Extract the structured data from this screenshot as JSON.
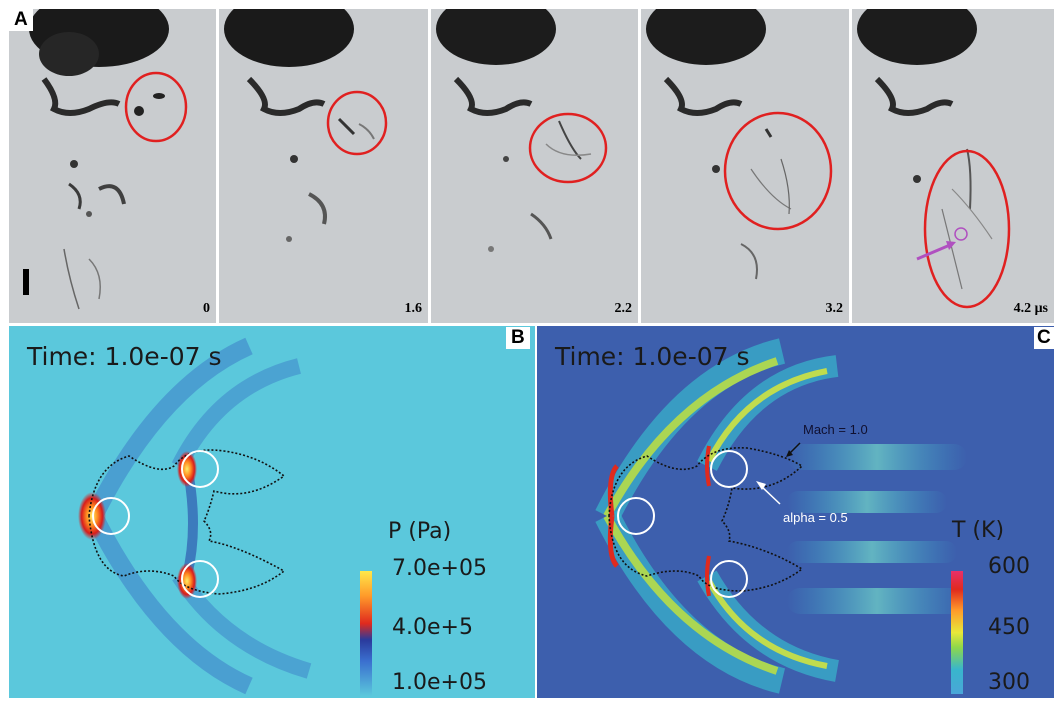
{
  "figure": {
    "panels": {
      "a": "A",
      "b": "B",
      "c": "C"
    },
    "frames": [
      {
        "time_label": "0"
      },
      {
        "time_label": "1.6"
      },
      {
        "time_label": "2.2"
      },
      {
        "time_label": "3.2"
      },
      {
        "time_label": "4.2 μs"
      }
    ]
  },
  "panel_b": {
    "time_title": "Time: 1.0e-07 s",
    "quantity": "P (Pa)",
    "colorbar_ticks": [
      "7.0e+05",
      "4.0e+5",
      "1.0e+05"
    ],
    "background_color": "#5bc8dc"
  },
  "panel_c": {
    "time_title": "Time: 1.0e-07 s",
    "quantity": "T (K)",
    "colorbar_ticks": [
      "600",
      "450",
      "300"
    ],
    "mach_label": "Mach = 1.0",
    "alpha_label": "alpha = 0.5",
    "background_color": "#3d5fad"
  },
  "colors": {
    "highlight_circle": "#e02020",
    "arrow": "#b050c0"
  }
}
